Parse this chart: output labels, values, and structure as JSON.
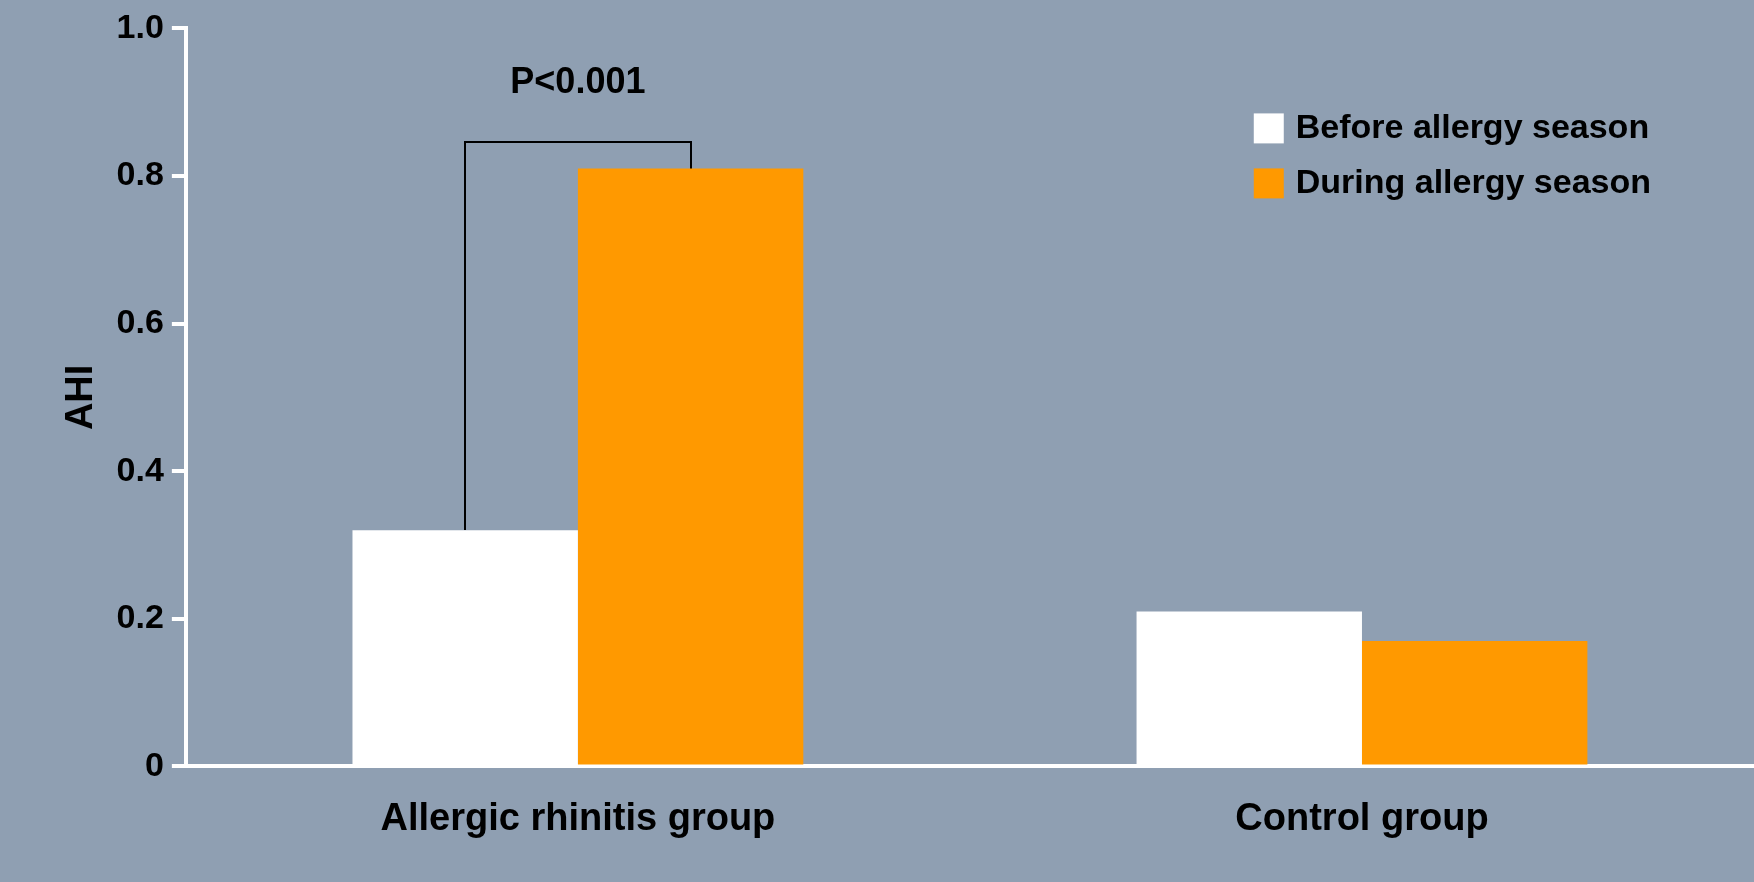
{
  "chart_data": {
    "type": "bar",
    "ylabel": "AHI",
    "categories": [
      "Allergic rhinitis group",
      "Control group"
    ],
    "series": [
      {
        "name": "Before allergy season",
        "color": "#ffffff",
        "values": [
          0.32,
          0.21
        ]
      },
      {
        "name": "During allergy season",
        "color": "#ff9900",
        "values": [
          0.81,
          0.17
        ]
      }
    ],
    "ylim": [
      0,
      1.0
    ],
    "yticks": [
      {
        "value": 0,
        "label": "0"
      },
      0.2,
      0.4,
      0.6,
      0.8,
      {
        "value": 1.0,
        "label": "1.0"
      }
    ],
    "grid": false,
    "legend": "top right",
    "annotations": [
      "P<0.001"
    ]
  }
}
